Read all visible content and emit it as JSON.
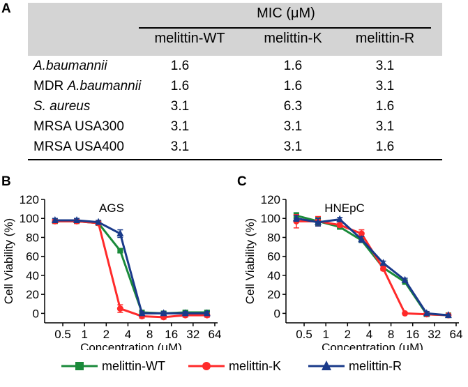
{
  "panels": {
    "a": "A",
    "b": "B",
    "c": "C"
  },
  "table": {
    "title": "MIC (μM)",
    "columns": [
      "melittin-WT",
      "melittin-K",
      "melittin-R"
    ],
    "rows": [
      {
        "prefix": "",
        "organism": "A.baumannii",
        "italic": true,
        "values": [
          "1.6",
          "1.6",
          "3.1"
        ]
      },
      {
        "prefix": "MDR ",
        "organism": "A.baumannii",
        "italic": true,
        "values": [
          "1.6",
          "1.6",
          "3.1"
        ]
      },
      {
        "prefix": "",
        "organism": "S. aureus",
        "italic": true,
        "values": [
          "3.1",
          "6.3",
          "1.6"
        ]
      },
      {
        "prefix": "MRSA USA300",
        "organism": "",
        "italic": false,
        "values": [
          "3.1",
          "3.1",
          "3.1"
        ]
      },
      {
        "prefix": "MRSA USA400",
        "organism": "",
        "italic": false,
        "values": [
          "3.1",
          "3.1",
          "1.6"
        ]
      }
    ]
  },
  "legend": [
    {
      "label": "melittin-WT",
      "color": "#1a8a3a",
      "marker": "square"
    },
    {
      "label": "melittin-K",
      "color": "#ff2a2a",
      "marker": "circle"
    },
    {
      "label": "melittin-R",
      "color": "#1a3a8a",
      "marker": "triangle"
    }
  ],
  "chart_data": [
    {
      "type": "line",
      "title": "AGS",
      "xlabel": "Concentration (μM)",
      "ylabel": "Cell Viability (%)",
      "xscale": "log2",
      "x": [
        0.39,
        0.78,
        1.56,
        3.125,
        6.25,
        12.5,
        25,
        50
      ],
      "xticks": [
        "0.5",
        "1",
        "2",
        "4",
        "8",
        "16",
        "32",
        "64"
      ],
      "xtick_values": [
        0.5,
        1,
        2,
        4,
        8,
        16,
        32,
        64
      ],
      "ylim": [
        -10,
        120
      ],
      "yticks": [
        0,
        20,
        40,
        60,
        80,
        100,
        120
      ],
      "series": [
        {
          "name": "melittin-WT",
          "color": "#1a8a3a",
          "marker": "square",
          "values": [
            97,
            97,
            95,
            66,
            1,
            0,
            1,
            1
          ],
          "errors": [
            2,
            2,
            2,
            2,
            2,
            2,
            2,
            2
          ]
        },
        {
          "name": "melittin-K",
          "color": "#ff2a2a",
          "marker": "circle",
          "values": [
            97,
            97,
            95,
            5,
            -3,
            -4,
            -2,
            -2
          ],
          "errors": [
            2,
            2,
            2,
            4,
            2,
            2,
            2,
            2
          ]
        },
        {
          "name": "melittin-R",
          "color": "#1a3a8a",
          "marker": "triangle",
          "values": [
            98,
            98,
            96,
            84,
            0,
            0,
            0,
            0
          ],
          "errors": [
            2,
            2,
            2,
            4,
            2,
            2,
            2,
            2
          ]
        }
      ]
    },
    {
      "type": "line",
      "title": "HNEpC",
      "xlabel": "Concentration (μM)",
      "ylabel": "Cell Viability (%)",
      "xscale": "log2",
      "x": [
        0.39,
        0.78,
        1.56,
        3.125,
        6.25,
        12.5,
        25,
        50
      ],
      "xticks": [
        "0.5",
        "1",
        "2",
        "4",
        "8",
        "16",
        "32",
        "64"
      ],
      "xtick_values": [
        0.5,
        1,
        2,
        4,
        8,
        16,
        32,
        64
      ],
      "ylim": [
        -10,
        120
      ],
      "yticks": [
        0,
        20,
        40,
        60,
        80,
        100,
        120
      ],
      "series": [
        {
          "name": "melittin-WT",
          "color": "#1a8a3a",
          "marker": "square",
          "values": [
            103,
            97,
            91,
            77,
            48,
            33,
            -1,
            -2
          ],
          "errors": [
            3,
            4,
            2,
            2,
            2,
            2,
            2,
            1
          ]
        },
        {
          "name": "melittin-K",
          "color": "#ff2a2a",
          "marker": "circle",
          "values": [
            97,
            97,
            93,
            84,
            47,
            0,
            -1,
            -2
          ],
          "errors": [
            7,
            5,
            2,
            4,
            2,
            1,
            1,
            1
          ]
        },
        {
          "name": "melittin-R",
          "color": "#1a3a8a",
          "marker": "triangle",
          "values": [
            100,
            96,
            99,
            78,
            53,
            35,
            0,
            -2
          ],
          "errors": [
            3,
            4,
            2,
            3,
            2,
            2,
            2,
            1
          ]
        }
      ]
    }
  ]
}
